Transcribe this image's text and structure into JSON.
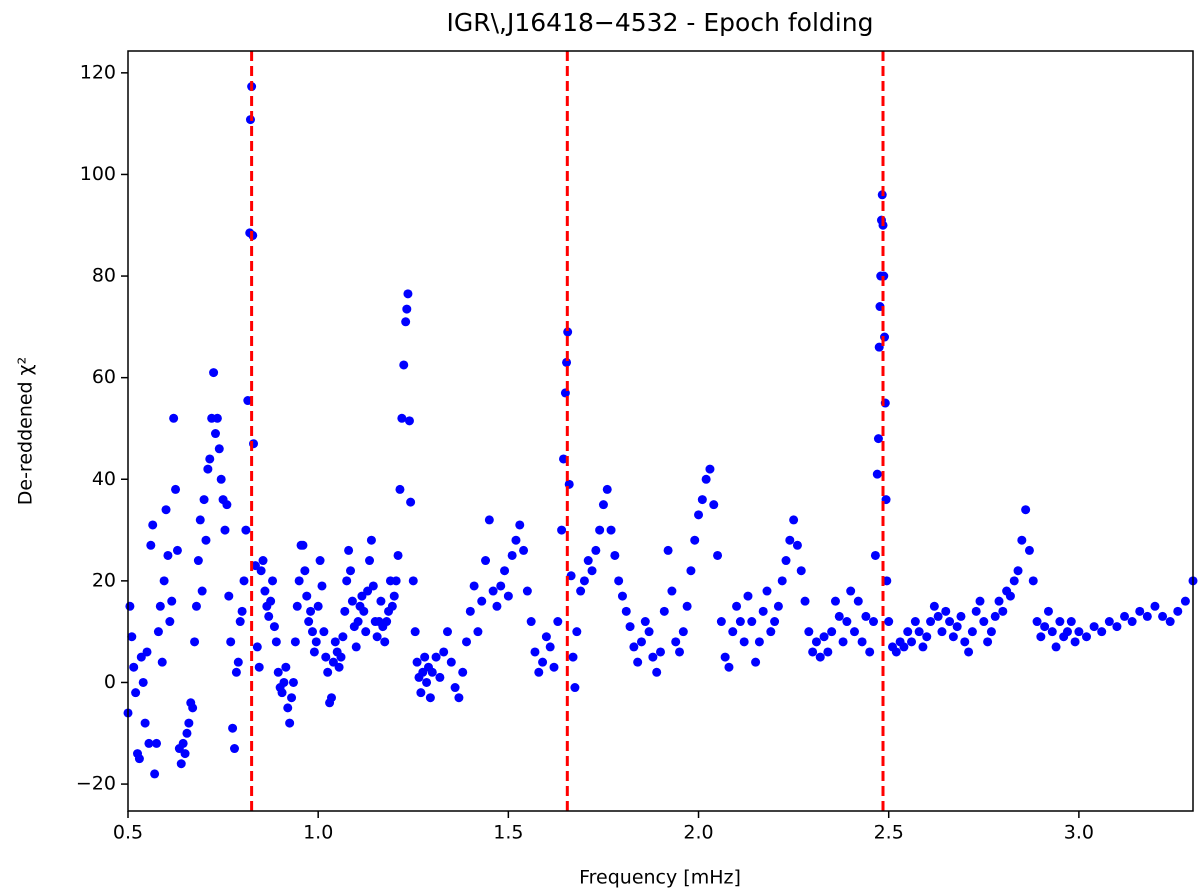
{
  "chart_data": {
    "type": "scatter",
    "title": "IGR\\,J16418−4532 - Epoch folding",
    "x_label": "Frequency [mHz]",
    "y_label": "De-reddened χ²",
    "xlim": [
      0.5,
      3.3
    ],
    "ylim": [
      -25.3,
      124.3
    ],
    "xticks": [
      0.5,
      {
        "value": 1,
        "label": "1.0"
      },
      1.5,
      {
        "value": 2,
        "label": "2.0"
      },
      2.5,
      {
        "value": 3,
        "label": "3.0"
      }
    ],
    "yticks": [
      {
        "value": -20,
        "label": "−20"
      },
      0,
      20,
      40,
      60,
      80,
      100,
      120
    ],
    "reference_lines": {
      "color": "#ff0000",
      "x": [
        0.825,
        1.655,
        2.485
      ]
    },
    "x": [
      0.5,
      0.505,
      0.51,
      0.515,
      0.52,
      0.525,
      0.53,
      0.535,
      0.54,
      0.545,
      0.55,
      0.555,
      0.56,
      0.565,
      0.57,
      0.575,
      0.58,
      0.585,
      0.59,
      0.595,
      0.6,
      0.605,
      0.61,
      0.615,
      0.62,
      0.625,
      0.63,
      0.635,
      0.64,
      0.645,
      0.65,
      0.655,
      0.66,
      0.665,
      0.67,
      0.675,
      0.68,
      0.685,
      0.69,
      0.695,
      0.7,
      0.705,
      0.71,
      0.715,
      0.72,
      0.725,
      0.73,
      0.735,
      0.74,
      0.745,
      0.75,
      0.755,
      0.76,
      0.765,
      0.77,
      0.775,
      0.78,
      0.785,
      0.79,
      0.795,
      0.8,
      0.805,
      0.81,
      0.815,
      0.82,
      0.822,
      0.825,
      0.828,
      0.83,
      0.835,
      0.84,
      0.845,
      0.85,
      0.855,
      0.86,
      0.865,
      0.87,
      0.875,
      0.88,
      0.885,
      0.89,
      0.895,
      0.9,
      0.905,
      0.91,
      0.915,
      0.92,
      0.925,
      0.93,
      0.935,
      0.94,
      0.945,
      0.95,
      0.955,
      0.96,
      0.965,
      0.97,
      0.975,
      0.98,
      0.985,
      0.99,
      0.995,
      1.0,
      1.005,
      1.01,
      1.015,
      1.02,
      1.025,
      1.03,
      1.035,
      1.04,
      1.045,
      1.05,
      1.055,
      1.06,
      1.065,
      1.07,
      1.075,
      1.08,
      1.085,
      1.09,
      1.095,
      1.1,
      1.105,
      1.11,
      1.115,
      1.12,
      1.125,
      1.13,
      1.135,
      1.14,
      1.145,
      1.15,
      1.155,
      1.16,
      1.165,
      1.17,
      1.175,
      1.18,
      1.185,
      1.19,
      1.195,
      1.2,
      1.205,
      1.21,
      1.215,
      1.22,
      1.225,
      1.23,
      1.233,
      1.236,
      1.24,
      1.243,
      1.25,
      1.255,
      1.26,
      1.265,
      1.27,
      1.275,
      1.28,
      1.285,
      1.29,
      1.295,
      1.3,
      1.31,
      1.32,
      1.33,
      1.34,
      1.35,
      1.36,
      1.37,
      1.38,
      1.39,
      1.4,
      1.41,
      1.42,
      1.43,
      1.44,
      1.45,
      1.46,
      1.47,
      1.48,
      1.49,
      1.5,
      1.51,
      1.52,
      1.53,
      1.54,
      1.55,
      1.56,
      1.57,
      1.58,
      1.59,
      1.6,
      1.61,
      1.62,
      1.63,
      1.64,
      1.645,
      1.65,
      1.653,
      1.656,
      1.66,
      1.665,
      1.67,
      1.675,
      1.68,
      1.69,
      1.7,
      1.71,
      1.72,
      1.73,
      1.74,
      1.75,
      1.76,
      1.77,
      1.78,
      1.79,
      1.8,
      1.81,
      1.82,
      1.83,
      1.84,
      1.85,
      1.86,
      1.87,
      1.88,
      1.89,
      1.9,
      1.91,
      1.92,
      1.93,
      1.94,
      1.95,
      1.96,
      1.97,
      1.98,
      1.99,
      2.0,
      2.01,
      2.02,
      2.03,
      2.04,
      2.05,
      2.06,
      2.07,
      2.08,
      2.09,
      2.1,
      2.11,
      2.12,
      2.13,
      2.14,
      2.15,
      2.16,
      2.17,
      2.18,
      2.19,
      2.2,
      2.21,
      2.22,
      2.23,
      2.24,
      2.25,
      2.26,
      2.27,
      2.28,
      2.29,
      2.3,
      2.31,
      2.32,
      2.33,
      2.34,
      2.35,
      2.36,
      2.37,
      2.38,
      2.39,
      2.4,
      2.41,
      2.42,
      2.43,
      2.44,
      2.45,
      2.46,
      2.465,
      2.47,
      2.473,
      2.475,
      2.477,
      2.479,
      2.481,
      2.483,
      2.485,
      2.487,
      2.489,
      2.491,
      2.493,
      2.495,
      2.5,
      2.51,
      2.52,
      2.53,
      2.54,
      2.55,
      2.56,
      2.57,
      2.58,
      2.59,
      2.6,
      2.61,
      2.62,
      2.63,
      2.64,
      2.65,
      2.66,
      2.67,
      2.68,
      2.69,
      2.7,
      2.71,
      2.72,
      2.73,
      2.74,
      2.75,
      2.76,
      2.77,
      2.78,
      2.79,
      2.8,
      2.81,
      2.82,
      2.83,
      2.84,
      2.85,
      2.86,
      2.87,
      2.88,
      2.89,
      2.9,
      2.91,
      2.92,
      2.93,
      2.94,
      2.95,
      2.96,
      2.97,
      2.98,
      2.99,
      3.0,
      3.02,
      3.04,
      3.06,
      3.08,
      3.1,
      3.12,
      3.14,
      3.16,
      3.18,
      3.2,
      3.22,
      3.24,
      3.26,
      3.28,
      3.3
    ],
    "series": [
      {
        "color": "#0000ff",
        "values": [
          -6,
          15,
          9,
          3,
          -2,
          -14,
          -15,
          5,
          0,
          -8,
          6,
          -12,
          27,
          31,
          -18,
          -12,
          10,
          15,
          4,
          20,
          34,
          25,
          12,
          16,
          52,
          38,
          26,
          -13,
          -16,
          -12,
          -14,
          -10,
          -8,
          -4,
          -5,
          8,
          15,
          24,
          32,
          18,
          36,
          28,
          42,
          44,
          52,
          61,
          49,
          52,
          46,
          40,
          36,
          30,
          35,
          17,
          8,
          -9,
          -13,
          2,
          4,
          12,
          14,
          20,
          30,
          55.5,
          88.5,
          110.8,
          117.3,
          88,
          47,
          23,
          7,
          3,
          22,
          24,
          18,
          15,
          13,
          16,
          20,
          11,
          8,
          2,
          -1,
          -2,
          0,
          3,
          -5,
          -8,
          -3,
          0,
          8,
          15,
          20,
          27,
          27,
          22,
          17,
          12,
          14,
          10,
          6,
          8,
          15,
          24,
          19,
          10,
          5,
          2,
          -4,
          -3,
          4,
          8,
          6,
          3,
          5,
          9,
          14,
          20,
          26,
          22,
          16,
          11,
          7,
          12,
          15,
          17,
          14,
          10,
          18,
          24,
          28,
          19,
          12,
          9,
          12,
          16,
          11,
          8,
          12,
          14,
          20,
          15,
          17,
          20,
          25,
          38,
          52,
          62.5,
          71,
          73.5,
          76.5,
          51.5,
          35.5,
          20,
          10,
          4,
          1,
          -2,
          2,
          5,
          0,
          3,
          -3,
          2,
          5,
          1,
          6,
          10,
          4,
          -1,
          -3,
          2,
          8,
          14,
          19,
          10,
          16,
          24,
          32,
          18,
          15,
          19,
          22,
          17,
          25,
          28,
          31,
          26,
          18,
          12,
          6,
          2,
          4,
          9,
          7,
          3,
          12,
          30,
          44,
          57,
          63,
          69,
          39,
          21,
          5,
          -1,
          10,
          18,
          20,
          24,
          22,
          26,
          30,
          35,
          38,
          30,
          25,
          20,
          17,
          14,
          11,
          7,
          4,
          8,
          12,
          10,
          5,
          2,
          6,
          14,
          26,
          18,
          8,
          6,
          10,
          15,
          22,
          28,
          33,
          36,
          40,
          42,
          35,
          25,
          12,
          5,
          3,
          10,
          15,
          12,
          8,
          17,
          12,
          4,
          8,
          14,
          18,
          10,
          12,
          15,
          20,
          24,
          28,
          32,
          27,
          22,
          16,
          10,
          6,
          8,
          5,
          9,
          6,
          10,
          16,
          13,
          8,
          12,
          18,
          10,
          16,
          8,
          13,
          6,
          12,
          25,
          41,
          48,
          66,
          74,
          80,
          91,
          96,
          90,
          80,
          68,
          55,
          36,
          20,
          12,
          7,
          6,
          8,
          7,
          10,
          8,
          12,
          10,
          7,
          9,
          12,
          15,
          13,
          10,
          14,
          12,
          9,
          11,
          13,
          8,
          6,
          10,
          14,
          16,
          12,
          8,
          10,
          13,
          16,
          14,
          18,
          17,
          20,
          22,
          28,
          34,
          26,
          20,
          12,
          9,
          11,
          14,
          10,
          7,
          12,
          9,
          10,
          12,
          8,
          10,
          9,
          11,
          10,
          12,
          11,
          13,
          12,
          14,
          13,
          15,
          13,
          12,
          14,
          16,
          20
        ]
      }
    ]
  }
}
